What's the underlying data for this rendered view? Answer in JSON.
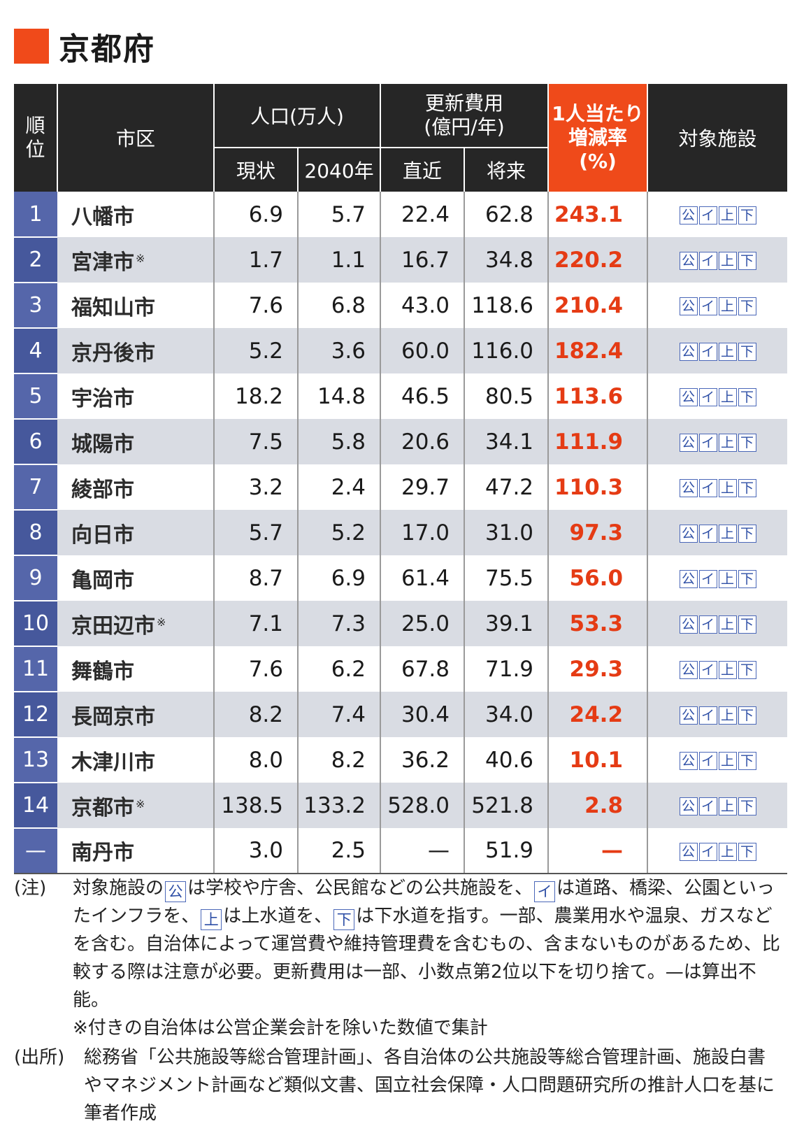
{
  "title": "京都府",
  "colors": {
    "accent": "#ef4a1a",
    "rank_bg": "#5566aa",
    "header_bg": "#262626",
    "rate_text": "#e53b14",
    "facility_box": "#2e4fa6"
  },
  "header": {
    "rank": "順位",
    "city": "市区",
    "population": "人口(万人)",
    "population_now": "現状",
    "population_2040": "2040年",
    "renewal_cost_1": "更新費用",
    "renewal_cost_2": "(億円/年)",
    "cost_recent": "直近",
    "cost_future": "将来",
    "rate_1": "1人当たり",
    "rate_2": "増減率",
    "rate_3": "(%)",
    "facilities": "対象施設"
  },
  "facility_icons": [
    "公",
    "イ",
    "上",
    "下"
  ],
  "rows": [
    {
      "rank": "1",
      "city": "八幡市",
      "mark": "",
      "pop_now": "6.9",
      "pop_2040": "5.7",
      "cost_recent": "22.4",
      "cost_future": "62.8",
      "rate": "243.1"
    },
    {
      "rank": "2",
      "city": "宮津市",
      "mark": "※",
      "pop_now": "1.7",
      "pop_2040": "1.1",
      "cost_recent": "16.7",
      "cost_future": "34.8",
      "rate": "220.2"
    },
    {
      "rank": "3",
      "city": "福知山市",
      "mark": "",
      "pop_now": "7.6",
      "pop_2040": "6.8",
      "cost_recent": "43.0",
      "cost_future": "118.6",
      "rate": "210.4"
    },
    {
      "rank": "4",
      "city": "京丹後市",
      "mark": "",
      "pop_now": "5.2",
      "pop_2040": "3.6",
      "cost_recent": "60.0",
      "cost_future": "116.0",
      "rate": "182.4"
    },
    {
      "rank": "5",
      "city": "宇治市",
      "mark": "",
      "pop_now": "18.2",
      "pop_2040": "14.8",
      "cost_recent": "46.5",
      "cost_future": "80.5",
      "rate": "113.6"
    },
    {
      "rank": "6",
      "city": "城陽市",
      "mark": "",
      "pop_now": "7.5",
      "pop_2040": "5.8",
      "cost_recent": "20.6",
      "cost_future": "34.1",
      "rate": "111.9"
    },
    {
      "rank": "7",
      "city": "綾部市",
      "mark": "",
      "pop_now": "3.2",
      "pop_2040": "2.4",
      "cost_recent": "29.7",
      "cost_future": "47.2",
      "rate": "110.3"
    },
    {
      "rank": "8",
      "city": "向日市",
      "mark": "",
      "pop_now": "5.7",
      "pop_2040": "5.2",
      "cost_recent": "17.0",
      "cost_future": "31.0",
      "rate": "97.3"
    },
    {
      "rank": "9",
      "city": "亀岡市",
      "mark": "",
      "pop_now": "8.7",
      "pop_2040": "6.9",
      "cost_recent": "61.4",
      "cost_future": "75.5",
      "rate": "56.0"
    },
    {
      "rank": "10",
      "city": "京田辺市",
      "mark": "※",
      "pop_now": "7.1",
      "pop_2040": "7.3",
      "cost_recent": "25.0",
      "cost_future": "39.1",
      "rate": "53.3"
    },
    {
      "rank": "11",
      "city": "舞鶴市",
      "mark": "",
      "pop_now": "7.6",
      "pop_2040": "6.2",
      "cost_recent": "67.8",
      "cost_future": "71.9",
      "rate": "29.3"
    },
    {
      "rank": "12",
      "city": "長岡京市",
      "mark": "",
      "pop_now": "8.2",
      "pop_2040": "7.4",
      "cost_recent": "30.4",
      "cost_future": "34.0",
      "rate": "24.2"
    },
    {
      "rank": "13",
      "city": "木津川市",
      "mark": "",
      "pop_now": "8.0",
      "pop_2040": "8.2",
      "cost_recent": "36.2",
      "cost_future": "40.6",
      "rate": "10.1"
    },
    {
      "rank": "14",
      "city": "京都市",
      "mark": "※",
      "pop_now": "138.5",
      "pop_2040": "133.2",
      "cost_recent": "528.0",
      "cost_future": "521.8",
      "rate": "2.8"
    },
    {
      "rank": "—",
      "city": "南丹市",
      "mark": "",
      "pop_now": "3.0",
      "pop_2040": "2.5",
      "cost_recent": "—",
      "cost_future": "51.9",
      "rate": "—"
    }
  ],
  "notes": {
    "note_label": "(注)",
    "note_p1": "対象施設の",
    "note_p2": "は学校や庁舎、公民館などの公共施設を、",
    "note_p3": "は道路、橋梁、公園といったインフラを、",
    "note_p4": "は上水道を、",
    "note_p5": "は下水道を指す。一部、農業用水や温泉、ガスなどを含む。自治体によって運営費や維持管理費を含むもの、含まないものがあるため、比較する際は注意が必要。更新費用は一部、小数点第2位以下を切り捨て。—は算出不能。",
    "note_p6": "※付きの自治体は公営企業会計を除いた数値で集計",
    "source_label": "(出所)",
    "source_text": "総務省「公共施設等総合管理計画」、各自治体の公共施設等総合管理計画、施設白書やマネジメント計画など類似文書、国立社会保障・人口問題研究所の推計人口を基に筆者作成"
  }
}
